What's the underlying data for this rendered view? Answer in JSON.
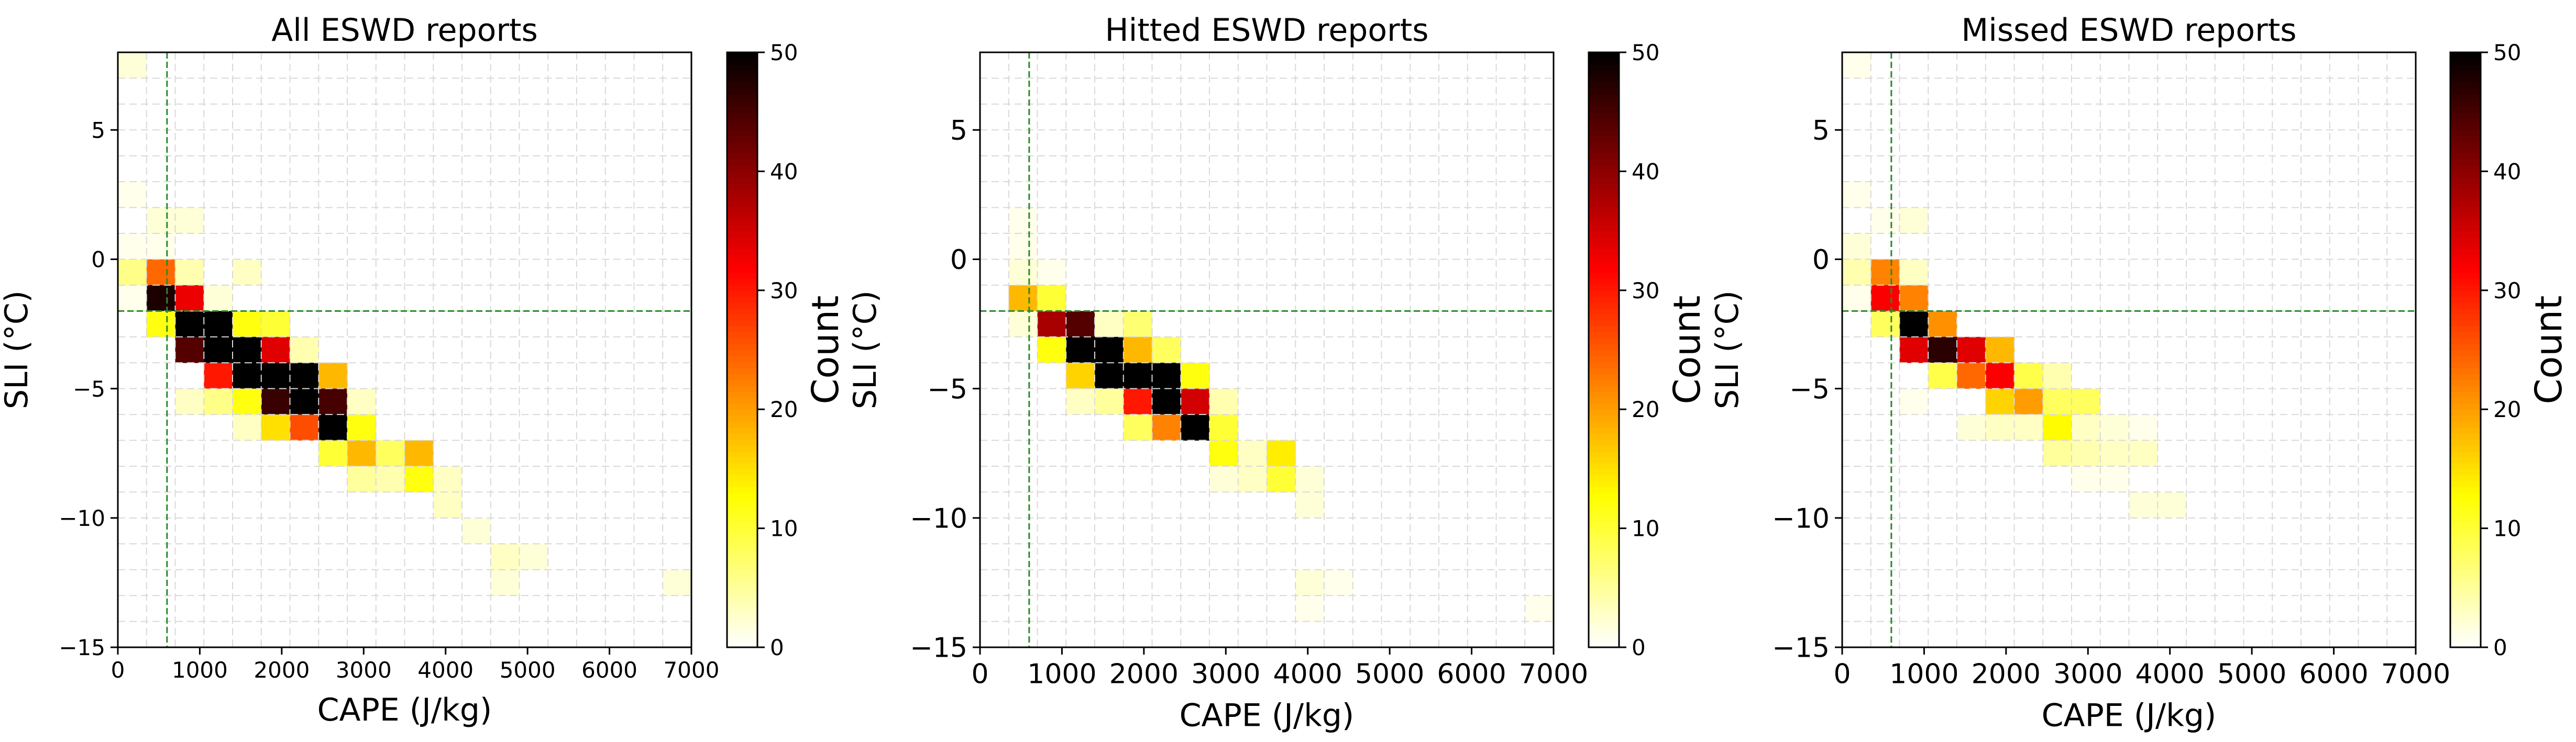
{
  "figure": {
    "background": "#ffffff"
  },
  "chart_data": [
    {
      "type": "heatmap",
      "title": "All ESWD reports",
      "xlabel": "CAPE (J/kg)",
      "ylabel": "SLI (°C)",
      "colorbar_label": "Count",
      "colormap": "hot_r",
      "vmin": 0,
      "vmax": 50,
      "xlim": [
        0,
        7000
      ],
      "ylim": [
        -15,
        8
      ],
      "xticks": [
        0,
        1000,
        2000,
        3000,
        4000,
        5000,
        6000,
        7000
      ],
      "yticks": [
        -15,
        -10,
        -5,
        0,
        5
      ],
      "colorbar_ticks": [
        0,
        10,
        20,
        30,
        40,
        50
      ],
      "tick_fontsize": "small",
      "grid": true,
      "bin_width_x": 350,
      "bin_height_y": 1,
      "threshold_lines": {
        "cape": 600,
        "sli": -2,
        "color": "#2a8a2a"
      },
      "cells": [
        {
          "x": 0,
          "y": 7,
          "count": 2
        },
        {
          "x": 0,
          "y": 2,
          "count": 1
        },
        {
          "x": 350,
          "y": 1,
          "count": 2
        },
        {
          "x": 700,
          "y": 1,
          "count": 2
        },
        {
          "x": 0,
          "y": 0,
          "count": 1
        },
        {
          "x": 350,
          "y": 0,
          "count": 1
        },
        {
          "x": 0,
          "y": -1,
          "count": 6
        },
        {
          "x": 350,
          "y": -1,
          "count": 24
        },
        {
          "x": 700,
          "y": -1,
          "count": 4
        },
        {
          "x": 1400,
          "y": -1,
          "count": 3
        },
        {
          "x": 0,
          "y": -2,
          "count": 1
        },
        {
          "x": 350,
          "y": -2,
          "count": 48
        },
        {
          "x": 700,
          "y": -2,
          "count": 33
        },
        {
          "x": 1050,
          "y": -2,
          "count": 2
        },
        {
          "x": 350,
          "y": -3,
          "count": 12
        },
        {
          "x": 700,
          "y": -3,
          "count": 50
        },
        {
          "x": 1050,
          "y": -3,
          "count": 50
        },
        {
          "x": 1400,
          "y": -3,
          "count": 12
        },
        {
          "x": 1750,
          "y": -3,
          "count": 10
        },
        {
          "x": 700,
          "y": -4,
          "count": 44
        },
        {
          "x": 1050,
          "y": -4,
          "count": 50
        },
        {
          "x": 1400,
          "y": -4,
          "count": 50
        },
        {
          "x": 1750,
          "y": -4,
          "count": 34
        },
        {
          "x": 2100,
          "y": -4,
          "count": 4
        },
        {
          "x": 1050,
          "y": -5,
          "count": 30
        },
        {
          "x": 1400,
          "y": -5,
          "count": 50
        },
        {
          "x": 1750,
          "y": -5,
          "count": 50
        },
        {
          "x": 2100,
          "y": -5,
          "count": 50
        },
        {
          "x": 2450,
          "y": -5,
          "count": 18
        },
        {
          "x": 700,
          "y": -6,
          "count": 3
        },
        {
          "x": 1050,
          "y": -6,
          "count": 6
        },
        {
          "x": 1400,
          "y": -6,
          "count": 12
        },
        {
          "x": 1750,
          "y": -6,
          "count": 46
        },
        {
          "x": 2100,
          "y": -6,
          "count": 50
        },
        {
          "x": 2450,
          "y": -6,
          "count": 45
        },
        {
          "x": 2800,
          "y": -6,
          "count": 3
        },
        {
          "x": 1400,
          "y": -7,
          "count": 3
        },
        {
          "x": 1750,
          "y": -7,
          "count": 15
        },
        {
          "x": 2100,
          "y": -7,
          "count": 26
        },
        {
          "x": 2450,
          "y": -7,
          "count": 50
        },
        {
          "x": 2800,
          "y": -7,
          "count": 12
        },
        {
          "x": 2450,
          "y": -8,
          "count": 10
        },
        {
          "x": 2800,
          "y": -8,
          "count": 18
        },
        {
          "x": 3150,
          "y": -8,
          "count": 8
        },
        {
          "x": 3500,
          "y": -8,
          "count": 18
        },
        {
          "x": 2800,
          "y": -9,
          "count": 5
        },
        {
          "x": 3150,
          "y": -9,
          "count": 4
        },
        {
          "x": 3500,
          "y": -9,
          "count": 12
        },
        {
          "x": 3850,
          "y": -9,
          "count": 3
        },
        {
          "x": 3850,
          "y": -10,
          "count": 3
        },
        {
          "x": 4200,
          "y": -11,
          "count": 2
        },
        {
          "x": 4550,
          "y": -12,
          "count": 3
        },
        {
          "x": 4900,
          "y": -12,
          "count": 2
        },
        {
          "x": 4550,
          "y": -13,
          "count": 2
        },
        {
          "x": 6650,
          "y": -13,
          "count": 2
        }
      ]
    },
    {
      "type": "heatmap",
      "title": "Hitted ESWD reports",
      "xlabel": "CAPE (J/kg)",
      "ylabel": "SLI (°C)",
      "colorbar_label": "Count",
      "colormap": "hot_r",
      "vmin": 0,
      "vmax": 50,
      "xlim": [
        0,
        7000
      ],
      "ylim": [
        -15,
        8
      ],
      "xticks": [
        0,
        1000,
        2000,
        3000,
        4000,
        5000,
        6000,
        7000
      ],
      "yticks": [
        -15,
        -10,
        -5,
        0,
        5
      ],
      "colorbar_ticks": [
        0,
        10,
        20,
        30,
        40,
        50
      ],
      "tick_fontsize": "large",
      "grid": true,
      "bin_width_x": 350,
      "bin_height_y": 1,
      "threshold_lines": {
        "cape": 600,
        "sli": -2,
        "color": "#2a8a2a"
      },
      "cells": [
        {
          "x": 350,
          "y": 1,
          "count": 1
        },
        {
          "x": 350,
          "y": 0,
          "count": 1
        },
        {
          "x": 350,
          "y": -1,
          "count": 2
        },
        {
          "x": 700,
          "y": -1,
          "count": 1
        },
        {
          "x": 350,
          "y": -2,
          "count": 18
        },
        {
          "x": 700,
          "y": -2,
          "count": 10
        },
        {
          "x": 350,
          "y": -3,
          "count": 2
        },
        {
          "x": 700,
          "y": -3,
          "count": 38
        },
        {
          "x": 1050,
          "y": -3,
          "count": 44
        },
        {
          "x": 1400,
          "y": -3,
          "count": 3
        },
        {
          "x": 1750,
          "y": -3,
          "count": 7
        },
        {
          "x": 700,
          "y": -4,
          "count": 12
        },
        {
          "x": 1050,
          "y": -4,
          "count": 50
        },
        {
          "x": 1400,
          "y": -4,
          "count": 50
        },
        {
          "x": 1750,
          "y": -4,
          "count": 18
        },
        {
          "x": 2100,
          "y": -4,
          "count": 8
        },
        {
          "x": 1050,
          "y": -5,
          "count": 16
        },
        {
          "x": 1400,
          "y": -5,
          "count": 50
        },
        {
          "x": 1750,
          "y": -5,
          "count": 50
        },
        {
          "x": 2100,
          "y": -5,
          "count": 50
        },
        {
          "x": 2450,
          "y": -5,
          "count": 12
        },
        {
          "x": 1050,
          "y": -6,
          "count": 3
        },
        {
          "x": 1400,
          "y": -6,
          "count": 5
        },
        {
          "x": 1750,
          "y": -6,
          "count": 30
        },
        {
          "x": 2100,
          "y": -6,
          "count": 50
        },
        {
          "x": 2450,
          "y": -6,
          "count": 35
        },
        {
          "x": 2800,
          "y": -6,
          "count": 4
        },
        {
          "x": 1750,
          "y": -7,
          "count": 8
        },
        {
          "x": 2100,
          "y": -7,
          "count": 22
        },
        {
          "x": 2450,
          "y": -7,
          "count": 50
        },
        {
          "x": 2800,
          "y": -7,
          "count": 10
        },
        {
          "x": 2800,
          "y": -8,
          "count": 12
        },
        {
          "x": 3150,
          "y": -8,
          "count": 3
        },
        {
          "x": 3500,
          "y": -8,
          "count": 14
        },
        {
          "x": 2800,
          "y": -9,
          "count": 2
        },
        {
          "x": 3150,
          "y": -9,
          "count": 3
        },
        {
          "x": 3500,
          "y": -9,
          "count": 10
        },
        {
          "x": 3850,
          "y": -9,
          "count": 2
        },
        {
          "x": 3850,
          "y": -10,
          "count": 2
        },
        {
          "x": 3850,
          "y": -13,
          "count": 2
        },
        {
          "x": 4200,
          "y": -13,
          "count": 1
        },
        {
          "x": 3850,
          "y": -14,
          "count": 1
        },
        {
          "x": 6650,
          "y": -14,
          "count": 1
        }
      ]
    },
    {
      "type": "heatmap",
      "title": "Missed ESWD reports",
      "xlabel": "CAPE (J/kg)",
      "ylabel": "SLI (°C)",
      "colorbar_label": "Count",
      "colormap": "hot_r",
      "vmin": 0,
      "vmax": 50,
      "xlim": [
        0,
        7000
      ],
      "ylim": [
        -15,
        8
      ],
      "xticks": [
        0,
        1000,
        2000,
        3000,
        4000,
        5000,
        6000,
        7000
      ],
      "yticks": [
        -15,
        -10,
        -5,
        0,
        5
      ],
      "colorbar_ticks": [
        0,
        10,
        20,
        30,
        40,
        50
      ],
      "tick_fontsize": "large",
      "grid": true,
      "bin_width_x": 350,
      "bin_height_y": 1,
      "threshold_lines": {
        "cape": 600,
        "sli": -2,
        "color": "#2a8a2a"
      },
      "cells": [
        {
          "x": 0,
          "y": 7,
          "count": 1
        },
        {
          "x": 0,
          "y": 2,
          "count": 1
        },
        {
          "x": 350,
          "y": 1,
          "count": 1
        },
        {
          "x": 700,
          "y": 1,
          "count": 2
        },
        {
          "x": 0,
          "y": 0,
          "count": 2
        },
        {
          "x": 0,
          "y": -1,
          "count": 4
        },
        {
          "x": 350,
          "y": -1,
          "count": 22
        },
        {
          "x": 700,
          "y": -1,
          "count": 3
        },
        {
          "x": 0,
          "y": -2,
          "count": 1
        },
        {
          "x": 350,
          "y": -2,
          "count": 32
        },
        {
          "x": 700,
          "y": -2,
          "count": 22
        },
        {
          "x": 350,
          "y": -3,
          "count": 8
        },
        {
          "x": 700,
          "y": -3,
          "count": 50
        },
        {
          "x": 1050,
          "y": -3,
          "count": 21
        },
        {
          "x": 700,
          "y": -4,
          "count": 34
        },
        {
          "x": 1050,
          "y": -4,
          "count": 47
        },
        {
          "x": 1400,
          "y": -4,
          "count": 34
        },
        {
          "x": 1750,
          "y": -4,
          "count": 18
        },
        {
          "x": 1050,
          "y": -5,
          "count": 9
        },
        {
          "x": 1400,
          "y": -5,
          "count": 24
        },
        {
          "x": 1750,
          "y": -5,
          "count": 32
        },
        {
          "x": 2100,
          "y": -5,
          "count": 9
        },
        {
          "x": 2450,
          "y": -5,
          "count": 4
        },
        {
          "x": 700,
          "y": -6,
          "count": 1
        },
        {
          "x": 1750,
          "y": -6,
          "count": 16
        },
        {
          "x": 2100,
          "y": -6,
          "count": 20
        },
        {
          "x": 2450,
          "y": -6,
          "count": 8
        },
        {
          "x": 2800,
          "y": -6,
          "count": 8
        },
        {
          "x": 1400,
          "y": -7,
          "count": 2
        },
        {
          "x": 1750,
          "y": -7,
          "count": 3
        },
        {
          "x": 2100,
          "y": -7,
          "count": 3
        },
        {
          "x": 2450,
          "y": -7,
          "count": 13
        },
        {
          "x": 2800,
          "y": -7,
          "count": 3
        },
        {
          "x": 3150,
          "y": -7,
          "count": 2
        },
        {
          "x": 3500,
          "y": -7,
          "count": 1
        },
        {
          "x": 2450,
          "y": -8,
          "count": 5
        },
        {
          "x": 2800,
          "y": -8,
          "count": 4
        },
        {
          "x": 3150,
          "y": -8,
          "count": 3
        },
        {
          "x": 3500,
          "y": -8,
          "count": 3
        },
        {
          "x": 2800,
          "y": -9,
          "count": 1
        },
        {
          "x": 3150,
          "y": -9,
          "count": 1
        },
        {
          "x": 3500,
          "y": -10,
          "count": 2
        },
        {
          "x": 3850,
          "y": -10,
          "count": 2
        }
      ]
    }
  ]
}
